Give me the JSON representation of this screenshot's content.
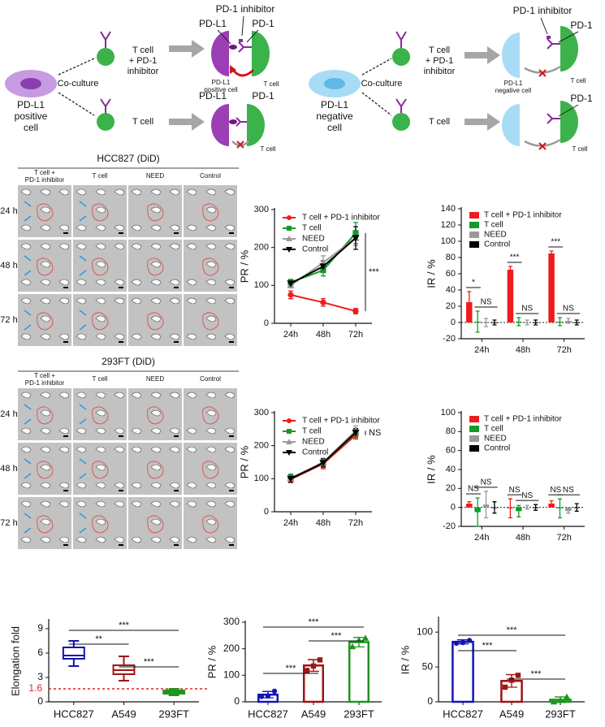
{
  "schematic": {
    "positive": {
      "cell": [
        "PD-L1",
        "positive",
        "cell"
      ],
      "treatment": [
        "T cell",
        "+ PD-1",
        "inhibitor"
      ],
      "co_culture": "Co-culture",
      "control": "T cell",
      "top": {
        "inhibitor": "PD-1 inhibitor",
        "ligand": "PD-L1",
        "receptor": "PD-1",
        "target": [
          "PD-L1",
          "positive cell"
        ],
        "effector": "T cell"
      },
      "bottom": {
        "ligand": "PD-L1",
        "receptor": "PD-1",
        "effector": "T cell"
      }
    },
    "negative": {
      "cell": [
        "PD-L1",
        "negative",
        "cell"
      ],
      "treatment": [
        "T cell",
        "+ PD-1",
        "inhibitor"
      ],
      "co_culture": "Co-culture",
      "control": "T cell",
      "top": {
        "inhibitor": "PD-1 inhibitor",
        "receptor": "PD-1",
        "target": [
          "PD-L1",
          "negative cell"
        ],
        "effector": "T cell"
      },
      "bottom": {
        "receptor": "PD-1",
        "effector": "T cell"
      }
    }
  },
  "microscopy": [
    {
      "title": "HCC827 (DiD)",
      "columns": [
        [
          "T cell +",
          "PD-1 inhibitor"
        ],
        [
          "T cell"
        ],
        [
          "NEED"
        ],
        [
          "Control"
        ]
      ],
      "rows": [
        "24 h",
        "48 h",
        "72 h"
      ]
    },
    {
      "title": "293FT (DiD)",
      "columns": [
        [
          "T cell +",
          "PD-1 inhibitor"
        ],
        [
          "T cell"
        ],
        [
          "NEED"
        ],
        [
          "Control"
        ]
      ],
      "rows": [
        "24 h",
        "48 h",
        "72 h"
      ]
    }
  ],
  "chart_data": [
    {
      "type": "line",
      "ylabel": "PR / %",
      "categories": [
        "24h",
        "48h",
        "72h"
      ],
      "ylim": [
        0,
        300
      ],
      "yticks": [
        0,
        100,
        200,
        300
      ],
      "annotation": "***",
      "series": [
        {
          "name": "T cell + PD-1 inhibitor",
          "color": "#ee1c1c",
          "marker": "circle",
          "values": [
            75,
            55,
            32
          ],
          "errors": [
            10,
            10,
            7
          ]
        },
        {
          "name": "T cell",
          "color": "#159a2a",
          "marker": "square",
          "values": [
            108,
            140,
            238
          ],
          "errors": [
            8,
            15,
            28
          ]
        },
        {
          "name": "NEED",
          "color": "#9a9a9a",
          "marker": "triangle",
          "values": [
            100,
            160,
            225
          ],
          "errors": [
            6,
            18,
            20
          ]
        },
        {
          "name": "Control",
          "color": "#000000",
          "marker": "triangle-down",
          "values": [
            105,
            150,
            225
          ],
          "errors": [
            6,
            15,
            30
          ]
        }
      ]
    },
    {
      "type": "bar",
      "ylabel": "IR / %",
      "categories": [
        "24h",
        "48h",
        "72h"
      ],
      "ylim": [
        -20,
        140
      ],
      "yticks": [
        -20,
        0,
        20,
        40,
        60,
        80,
        100,
        120,
        140
      ],
      "zero_line": true,
      "annotations": [
        [
          "*",
          "NS"
        ],
        [
          "***",
          "NS"
        ],
        [
          "***",
          "NS"
        ]
      ],
      "series": [
        {
          "name": "T cell + PD-1 inhibitor",
          "color": "#ee1c1c",
          "values": [
            25,
            65,
            85
          ],
          "errors": [
            13,
            4,
            3
          ]
        },
        {
          "name": "T cell",
          "color": "#159a2a",
          "values": [
            1,
            1,
            1
          ],
          "errors": [
            13,
            5,
            5
          ]
        },
        {
          "name": "NEED",
          "color": "#9a9a9a",
          "values": [
            0,
            0,
            2
          ],
          "errors": [
            5,
            3,
            3
          ]
        },
        {
          "name": "Control",
          "color": "#000000",
          "values": [
            0,
            0,
            0
          ],
          "errors": [
            3,
            3,
            3
          ]
        }
      ]
    },
    {
      "type": "line",
      "ylabel": "PR / %",
      "categories": [
        "24h",
        "48h",
        "72h"
      ],
      "ylim": [
        0,
        300
      ],
      "yticks": [
        0,
        100,
        200,
        300
      ],
      "annotation": "NS",
      "series": [
        {
          "name": "T cell + PD-1 inhibitor",
          "color": "#ee1c1c",
          "marker": "circle",
          "values": [
            98,
            145,
            232
          ],
          "errors": [
            10,
            15,
            12
          ]
        },
        {
          "name": "T cell",
          "color": "#159a2a",
          "marker": "square",
          "values": [
            102,
            148,
            238
          ],
          "errors": [
            12,
            14,
            14
          ]
        },
        {
          "name": "NEED",
          "color": "#9a9a9a",
          "marker": "triangle",
          "values": [
            100,
            150,
            245
          ],
          "errors": [
            10,
            12,
            15
          ]
        },
        {
          "name": "Control",
          "color": "#000000",
          "marker": "triangle-down",
          "values": [
            100,
            148,
            240
          ],
          "errors": [
            10,
            12,
            12
          ]
        }
      ]
    },
    {
      "type": "bar",
      "ylabel": "IR / %",
      "categories": [
        "24h",
        "48h",
        "72h"
      ],
      "ylim": [
        -20,
        100
      ],
      "yticks": [
        -20,
        0,
        20,
        40,
        60,
        80,
        100
      ],
      "zero_line": true,
      "annotations": [
        [
          "NS",
          "NS"
        ],
        [
          "NS",
          "NS"
        ],
        [
          "NS",
          "NS"
        ]
      ],
      "series": [
        {
          "name": "T cell + PD-1 inhibitor",
          "color": "#ee1c1c",
          "values": [
            4,
            -1,
            4
          ],
          "errors": [
            2,
            10,
            3
          ]
        },
        {
          "name": "T cell",
          "color": "#159a2a",
          "values": [
            -5,
            -4,
            -1
          ],
          "errors": [
            15,
            6,
            10
          ]
        },
        {
          "name": "NEED",
          "color": "#9a9a9a",
          "values": [
            3,
            0,
            -4
          ],
          "errors": [
            14,
            2,
            2
          ]
        },
        {
          "name": "Control",
          "color": "#000000",
          "values": [
            0,
            0,
            0
          ],
          "errors": [
            6,
            3,
            4
          ]
        }
      ]
    },
    {
      "type": "box",
      "ylabel": "Elongation fold",
      "categories": [
        "HCC827",
        "A549",
        "293FT"
      ],
      "colors": [
        "#1414b4",
        "#a01414",
        "#1e961e"
      ],
      "ylim": [
        0,
        10
      ],
      "yticks": [
        0,
        3,
        6,
        9
      ],
      "reference": {
        "value": 1.6,
        "label": "1.6",
        "color": "#ee1c1c"
      },
      "boxes": [
        {
          "min": 4.4,
          "q1": 5.3,
          "median": 5.7,
          "q3": 6.7,
          "max": 7.5
        },
        {
          "min": 2.6,
          "q1": 3.4,
          "median": 3.9,
          "q3": 4.5,
          "max": 5.6
        },
        {
          "min": 0.8,
          "q1": 1.0,
          "median": 1.2,
          "q3": 1.4,
          "max": 1.6
        }
      ],
      "comparisons": [
        {
          "pair": [
            "HCC827",
            "293FT"
          ],
          "label": "***"
        },
        {
          "pair": [
            "HCC827",
            "A549"
          ],
          "label": "**"
        },
        {
          "pair": [
            "A549",
            "293FT"
          ],
          "label": "***"
        }
      ]
    },
    {
      "type": "bar",
      "ylabel": "PR / %",
      "categories": [
        "HCC827",
        "A549",
        "293FT"
      ],
      "colors": [
        "#1414b4",
        "#a01414",
        "#1e961e"
      ],
      "markers": [
        "circle",
        "square",
        "triangle"
      ],
      "ylim": [
        0,
        300
      ],
      "yticks": [
        0,
        100,
        200,
        300
      ],
      "values": [
        27,
        137,
        225
      ],
      "errors": [
        12,
        22,
        18
      ],
      "points": [
        [
          20,
          22,
          40
        ],
        [
          118,
          135,
          158
        ],
        [
          208,
          232,
          240
        ]
      ],
      "comparisons": [
        {
          "pair": [
            "HCC827",
            "293FT"
          ],
          "label": "***"
        },
        {
          "pair": [
            "A549",
            "293FT"
          ],
          "label": "***"
        },
        {
          "pair": [
            "HCC827",
            "A549"
          ],
          "label": "***"
        }
      ]
    },
    {
      "type": "bar",
      "ylabel": "IR / %",
      "categories": [
        "HCC827",
        "A549",
        "293FT"
      ],
      "colors": [
        "#1414b4",
        "#a01414",
        "#1e961e"
      ],
      "markers": [
        "circle",
        "square",
        "triangle"
      ],
      "ylim": [
        0,
        120
      ],
      "yticks": [
        0,
        50,
        100
      ],
      "values": [
        86,
        30,
        3
      ],
      "errors": [
        3,
        9,
        4
      ],
      "points": [
        [
          84,
          85,
          88
        ],
        [
          21,
          31,
          38
        ],
        [
          0,
          2,
          7
        ]
      ],
      "comparisons": [
        {
          "pair": [
            "HCC827",
            "293FT"
          ],
          "label": "***"
        },
        {
          "pair": [
            "HCC827",
            "A549"
          ],
          "label": "***"
        },
        {
          "pair": [
            "A549",
            "293FT"
          ],
          "label": "***"
        }
      ]
    }
  ]
}
